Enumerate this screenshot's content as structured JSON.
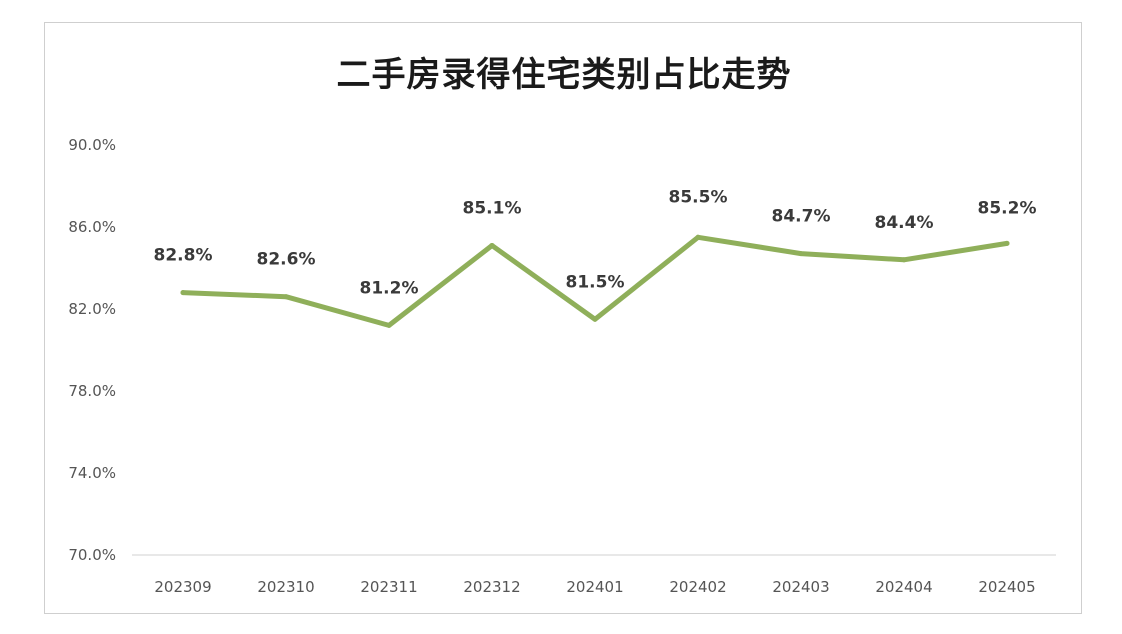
{
  "chart_data": {
    "type": "line",
    "title": "二手房录得住宅类别占比走势",
    "xlabel": "",
    "ylabel": "",
    "categories": [
      "202309",
      "202310",
      "202311",
      "202312",
      "202401",
      "202402",
      "202403",
      "202404",
      "202405"
    ],
    "series": [
      {
        "values": [
          82.8,
          82.6,
          81.2,
          85.1,
          81.5,
          85.5,
          84.7,
          84.4,
          85.2
        ],
        "labels": [
          "82.8%",
          "82.6%",
          "81.2%",
          "85.1%",
          "81.5%",
          "85.5%",
          "84.7%",
          "84.4%",
          "85.2%"
        ],
        "color": "#8faf5a"
      }
    ],
    "ylim": [
      70,
      90
    ],
    "yticks": [
      70,
      74,
      78,
      82,
      86,
      90
    ],
    "ytick_labels": [
      "70.0%",
      "74.0%",
      "78.0%",
      "82.0%",
      "86.0%",
      "90.0%"
    ],
    "grid": false,
    "legend": "none"
  }
}
